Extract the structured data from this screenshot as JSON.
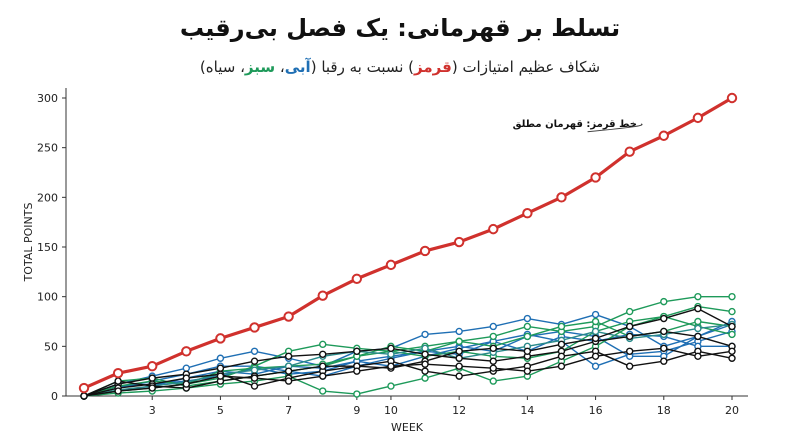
{
  "title": "تسلط بر قهرمانی: یک فصل بی‌رقیب",
  "subtitle": {
    "prefix": "شکاف عظیم امتیازات ",
    "paren_open": "(",
    "red_word": "قرمز",
    "paren_close": ")",
    "middle": " نسبت به رقبا (",
    "blue_word": "آبی",
    "sep1": "، ",
    "green_word": "سبز",
    "sep2": "، ",
    "black_word": "سیاه",
    "end": ")"
  },
  "colors": {
    "red": "#d0312d",
    "blue": "#1f6fb4",
    "green": "#1e9a5a",
    "teal": "#2a8a8a",
    "black": "#111111",
    "axis": "#333333"
  },
  "chart_data": {
    "type": "line",
    "xlabel": "WEEK",
    "ylabel": "TOTAL POINTS",
    "xlim": [
      1,
      20
    ],
    "ylim": [
      0,
      300
    ],
    "xticks": [
      3,
      5,
      7,
      9,
      10,
      12,
      14,
      16,
      18,
      20
    ],
    "yticks": [
      0,
      50,
      100,
      150,
      200,
      250,
      300
    ],
    "grid": false,
    "annotation": {
      "text": "خط قرمز: قهرمان مطلق",
      "x": 16,
      "y": 262
    },
    "series": [
      {
        "color": "red",
        "values": [
          8,
          23,
          30,
          45,
          58,
          69,
          80,
          101,
          118,
          132,
          146,
          155,
          168,
          184,
          200,
          220,
          246,
          262,
          280,
          300
        ],
        "emphasis": true
      },
      {
        "color": "blue",
        "values": [
          0,
          12,
          20,
          28,
          38,
          45,
          38,
          30,
          45,
          48,
          62,
          65,
          70,
          78,
          72,
          82,
          70,
          50,
          60,
          72
        ]
      },
      {
        "color": "blue",
        "values": [
          0,
          8,
          15,
          22,
          30,
          30,
          25,
          20,
          30,
          38,
          45,
          42,
          55,
          62,
          55,
          30,
          42,
          45,
          55,
          65
        ]
      },
      {
        "color": "blue",
        "values": [
          0,
          10,
          12,
          15,
          20,
          28,
          22,
          25,
          35,
          40,
          45,
          50,
          45,
          60,
          65,
          60,
          40,
          40,
          60,
          75
        ]
      },
      {
        "color": "blue",
        "values": [
          0,
          5,
          10,
          18,
          25,
          22,
          30,
          28,
          35,
          30,
          40,
          48,
          55,
          45,
          60,
          55,
          62,
          60,
          50,
          50
        ]
      },
      {
        "color": "green",
        "values": [
          0,
          15,
          18,
          10,
          15,
          20,
          25,
          30,
          40,
          45,
          50,
          55,
          60,
          70,
          65,
          70,
          85,
          95,
          100,
          100
        ]
      },
      {
        "color": "green",
        "values": [
          0,
          5,
          8,
          12,
          18,
          30,
          45,
          52,
          48,
          45,
          40,
          45,
          40,
          38,
          45,
          65,
          75,
          80,
          90,
          85
        ]
      },
      {
        "color": "green",
        "values": [
          0,
          3,
          5,
          8,
          12,
          15,
          20,
          5,
          2,
          10,
          18,
          28,
          15,
          20,
          35,
          50,
          70,
          80,
          70,
          62
        ]
      },
      {
        "color": "green",
        "values": [
          0,
          10,
          15,
          12,
          25,
          28,
          30,
          32,
          40,
          50,
          45,
          55,
          50,
          60,
          70,
          75,
          60,
          65,
          75,
          70
        ]
      },
      {
        "color": "teal",
        "values": [
          0,
          6,
          10,
          14,
          22,
          26,
          30,
          40,
          45,
          42,
          48,
          38,
          44,
          50,
          56,
          65,
          58,
          62,
          68,
          72
        ]
      },
      {
        "color": "black",
        "values": [
          0,
          12,
          18,
          22,
          28,
          35,
          40,
          42,
          45,
          48,
          42,
          38,
          35,
          40,
          45,
          55,
          60,
          65,
          60,
          50
        ]
      },
      {
        "color": "black",
        "values": [
          0,
          8,
          12,
          18,
          22,
          10,
          18,
          25,
          30,
          35,
          25,
          20,
          25,
          30,
          40,
          45,
          30,
          35,
          45,
          38
        ]
      },
      {
        "color": "black",
        "values": [
          0,
          15,
          10,
          8,
          15,
          20,
          25,
          30,
          30,
          28,
          35,
          45,
          48,
          45,
          52,
          58,
          70,
          78,
          88,
          70
        ]
      },
      {
        "color": "black",
        "values": [
          0,
          5,
          8,
          12,
          20,
          18,
          15,
          20,
          25,
          30,
          32,
          30,
          28,
          25,
          30,
          40,
          45,
          48,
          40,
          45
        ]
      }
    ]
  }
}
